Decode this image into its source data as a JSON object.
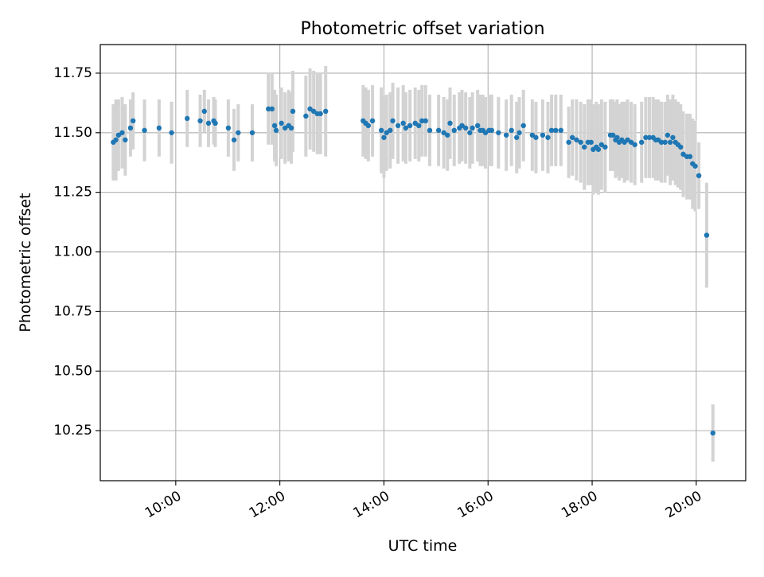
{
  "chart_data": {
    "type": "scatter",
    "title": "Photometric offset variation",
    "xlabel": "UTC time",
    "ylabel": "Photometric offset",
    "x_unit": "hours UTC",
    "xlim": [
      8.55,
      20.95
    ],
    "ylim": [
      10.04,
      11.87
    ],
    "x_ticks": [
      10,
      12,
      14,
      16,
      18,
      20
    ],
    "x_tick_labels": [
      "10:00",
      "12:00",
      "14:00",
      "16:00",
      "18:00",
      "20:00"
    ],
    "y_ticks": [
      10.25,
      10.5,
      10.75,
      11.0,
      11.25,
      11.5,
      11.75
    ],
    "y_tick_labels": [
      "10.25",
      "10.50",
      "10.75",
      "11.00",
      "11.25",
      "11.50",
      "11.75"
    ],
    "grid": true,
    "series": [
      {
        "marker_color": "#1f77b4",
        "errorbar_color": "#d3d3d3",
        "points": [
          [
            8.8,
            11.46,
            0.16
          ],
          [
            8.85,
            11.47,
            0.17
          ],
          [
            8.9,
            11.49,
            0.15
          ],
          [
            8.97,
            11.5,
            0.15
          ],
          [
            9.03,
            11.47,
            0.15
          ],
          [
            9.13,
            11.52,
            0.12
          ],
          [
            9.18,
            11.55,
            0.12
          ],
          [
            9.4,
            11.51,
            0.13
          ],
          [
            9.68,
            11.52,
            0.12
          ],
          [
            9.92,
            11.5,
            0.13
          ],
          [
            10.22,
            11.56,
            0.12
          ],
          [
            10.47,
            11.55,
            0.11
          ],
          [
            10.55,
            11.59,
            0.09
          ],
          [
            10.63,
            11.54,
            0.1
          ],
          [
            10.73,
            11.55,
            0.1
          ],
          [
            10.76,
            11.54,
            0.1
          ],
          [
            11.01,
            11.52,
            0.12
          ],
          [
            11.12,
            11.47,
            0.13
          ],
          [
            11.2,
            11.5,
            0.12
          ],
          [
            11.47,
            11.5,
            0.12
          ],
          [
            11.78,
            11.6,
            0.15
          ],
          [
            11.85,
            11.6,
            0.15
          ],
          [
            11.9,
            11.53,
            0.15
          ],
          [
            11.93,
            11.51,
            0.15
          ],
          [
            12.03,
            11.54,
            0.15
          ],
          [
            12.1,
            11.52,
            0.15
          ],
          [
            12.17,
            11.53,
            0.15
          ],
          [
            12.22,
            11.52,
            0.15
          ],
          [
            12.25,
            11.59,
            0.17
          ],
          [
            12.5,
            11.57,
            0.17
          ],
          [
            12.58,
            11.6,
            0.17
          ],
          [
            12.65,
            11.59,
            0.17
          ],
          [
            12.72,
            11.58,
            0.17
          ],
          [
            12.78,
            11.58,
            0.17
          ],
          [
            12.88,
            11.59,
            0.19
          ],
          [
            13.6,
            11.55,
            0.15
          ],
          [
            13.65,
            11.54,
            0.15
          ],
          [
            13.7,
            11.53,
            0.15
          ],
          [
            13.78,
            11.55,
            0.15
          ],
          [
            13.95,
            11.51,
            0.18
          ],
          [
            14.0,
            11.48,
            0.17
          ],
          [
            14.05,
            11.5,
            0.16
          ],
          [
            14.12,
            11.51,
            0.16
          ],
          [
            14.17,
            11.55,
            0.16
          ],
          [
            14.27,
            11.53,
            0.16
          ],
          [
            14.37,
            11.54,
            0.16
          ],
          [
            14.42,
            11.52,
            0.15
          ],
          [
            14.5,
            11.53,
            0.15
          ],
          [
            14.6,
            11.54,
            0.15
          ],
          [
            14.67,
            11.53,
            0.15
          ],
          [
            14.73,
            11.55,
            0.15
          ],
          [
            14.8,
            11.55,
            0.15
          ],
          [
            14.88,
            11.51,
            0.15
          ],
          [
            15.05,
            11.51,
            0.15
          ],
          [
            15.15,
            11.5,
            0.15
          ],
          [
            15.22,
            11.49,
            0.15
          ],
          [
            15.27,
            11.54,
            0.15
          ],
          [
            15.35,
            11.51,
            0.15
          ],
          [
            15.45,
            11.52,
            0.15
          ],
          [
            15.5,
            11.53,
            0.15
          ],
          [
            15.57,
            11.52,
            0.15
          ],
          [
            15.65,
            11.5,
            0.15
          ],
          [
            15.7,
            11.52,
            0.15
          ],
          [
            15.8,
            11.53,
            0.15
          ],
          [
            15.85,
            11.51,
            0.15
          ],
          [
            15.9,
            11.51,
            0.15
          ],
          [
            15.95,
            11.5,
            0.15
          ],
          [
            16.02,
            11.51,
            0.15
          ],
          [
            16.07,
            11.51,
            0.15
          ],
          [
            16.2,
            11.5,
            0.15
          ],
          [
            16.35,
            11.49,
            0.15
          ],
          [
            16.45,
            11.51,
            0.15
          ],
          [
            16.55,
            11.48,
            0.15
          ],
          [
            16.6,
            11.5,
            0.15
          ],
          [
            16.68,
            11.53,
            0.15
          ],
          [
            16.85,
            11.49,
            0.15
          ],
          [
            16.92,
            11.48,
            0.15
          ],
          [
            17.05,
            11.49,
            0.15
          ],
          [
            17.15,
            11.48,
            0.15
          ],
          [
            17.22,
            11.51,
            0.15
          ],
          [
            17.3,
            11.51,
            0.15
          ],
          [
            17.4,
            11.51,
            0.15
          ],
          [
            17.55,
            11.46,
            0.15
          ],
          [
            17.62,
            11.48,
            0.16
          ],
          [
            17.7,
            11.47,
            0.17
          ],
          [
            17.78,
            11.46,
            0.17
          ],
          [
            17.85,
            11.44,
            0.18
          ],
          [
            17.92,
            11.46,
            0.18
          ],
          [
            17.98,
            11.46,
            0.18
          ],
          [
            18.02,
            11.43,
            0.19
          ],
          [
            18.08,
            11.44,
            0.19
          ],
          [
            18.12,
            11.43,
            0.19
          ],
          [
            18.18,
            11.45,
            0.19
          ],
          [
            18.25,
            11.44,
            0.19
          ],
          [
            18.35,
            11.49,
            0.15
          ],
          [
            18.4,
            11.49,
            0.15
          ],
          [
            18.45,
            11.47,
            0.16
          ],
          [
            18.48,
            11.48,
            0.16
          ],
          [
            18.52,
            11.46,
            0.16
          ],
          [
            18.57,
            11.47,
            0.16
          ],
          [
            18.62,
            11.46,
            0.17
          ],
          [
            18.68,
            11.47,
            0.17
          ],
          [
            18.75,
            11.46,
            0.17
          ],
          [
            18.82,
            11.45,
            0.17
          ],
          [
            18.95,
            11.46,
            0.17
          ],
          [
            19.03,
            11.48,
            0.17
          ],
          [
            19.1,
            11.48,
            0.17
          ],
          [
            19.17,
            11.48,
            0.17
          ],
          [
            19.22,
            11.47,
            0.17
          ],
          [
            19.27,
            11.47,
            0.17
          ],
          [
            19.33,
            11.46,
            0.17
          ],
          [
            19.4,
            11.46,
            0.17
          ],
          [
            19.45,
            11.49,
            0.17
          ],
          [
            19.5,
            11.46,
            0.18
          ],
          [
            19.55,
            11.48,
            0.18
          ],
          [
            19.6,
            11.46,
            0.18
          ],
          [
            19.65,
            11.45,
            0.18
          ],
          [
            19.7,
            11.44,
            0.18
          ],
          [
            19.75,
            11.41,
            0.18
          ],
          [
            19.82,
            11.4,
            0.18
          ],
          [
            19.88,
            11.4,
            0.18
          ],
          [
            19.93,
            11.37,
            0.19
          ],
          [
            19.98,
            11.36,
            0.19
          ],
          [
            20.05,
            11.32,
            0.14
          ],
          [
            20.2,
            11.07,
            0.22
          ],
          [
            20.32,
            10.24,
            0.12
          ]
        ]
      }
    ]
  }
}
